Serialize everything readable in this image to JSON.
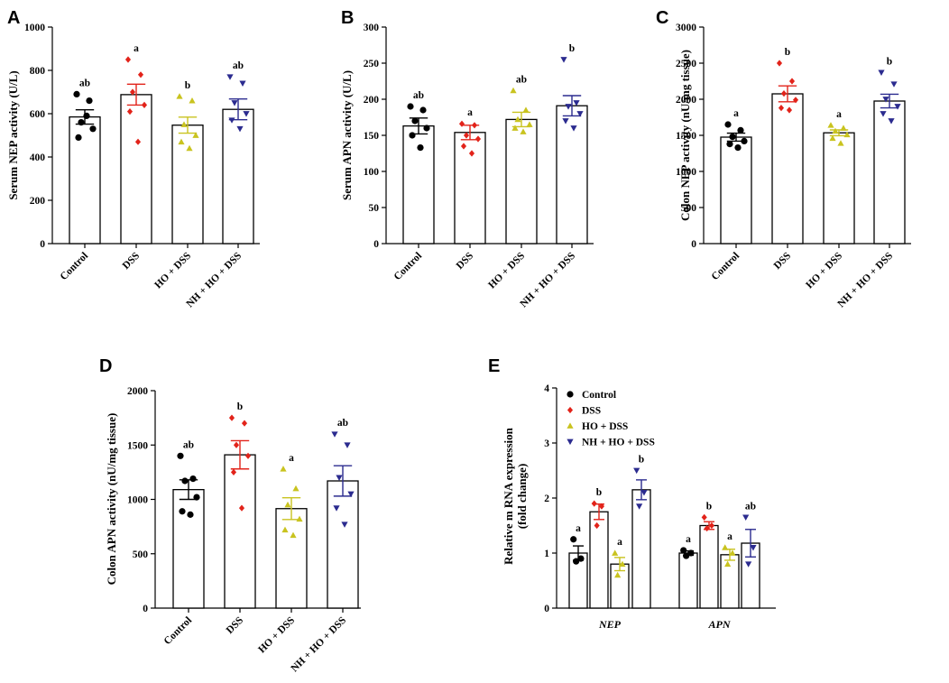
{
  "colors": {
    "Control": "#000000",
    "DSS": "#e2231a",
    "HO + DSS": "#c9c31f",
    "NH + HO + DSS": "#2b2b8f"
  },
  "markers": {
    "Control": "circle",
    "DSS": "diamond",
    "HO + DSS": "triangle-up",
    "NH + HO + DSS": "triangle-down"
  },
  "chart_data": [
    {
      "panel": "A",
      "type": "bar",
      "ylabel": "Serum NEP activity (U/L)",
      "ylim": [
        0,
        1000
      ],
      "yticks": [
        0,
        200,
        400,
        600,
        800,
        1000
      ],
      "categories": [
        "Control",
        "DSS",
        "HO + DSS",
        "NH + HO + DSS"
      ],
      "values": [
        585,
        688,
        547,
        620
      ],
      "sem": [
        33,
        48,
        37,
        48
      ],
      "significance": [
        "ab",
        "a",
        "b",
        "ab"
      ],
      "points": [
        [
          690,
          660,
          560,
          530,
          490,
          590
        ],
        [
          850,
          780,
          700,
          640,
          610,
          470
        ],
        [
          680,
          660,
          550,
          500,
          470,
          440
        ],
        [
          770,
          740,
          650,
          600,
          570,
          530
        ]
      ]
    },
    {
      "panel": "B",
      "type": "bar",
      "ylabel": "Serum APN activity (U/L)",
      "ylim": [
        0,
        300
      ],
      "yticks": [
        0,
        50,
        100,
        150,
        200,
        250,
        300
      ],
      "categories": [
        "Control",
        "DSS",
        "HO + DSS",
        "NH + HO + DSS"
      ],
      "values": [
        163,
        154,
        172,
        191
      ],
      "sem": [
        11,
        10,
        10,
        14
      ],
      "significance": [
        "ab",
        "a",
        "ab",
        "b"
      ],
      "points": [
        [
          190,
          185,
          170,
          160,
          150,
          133
        ],
        [
          166,
          164,
          150,
          145,
          135,
          125
        ],
        [
          212,
          185,
          172,
          165,
          160,
          155
        ],
        [
          255,
          195,
          190,
          180,
          170,
          160
        ]
      ]
    },
    {
      "panel": "C",
      "type": "bar",
      "ylabel": "Colon NEP activity (nU/mg tissue)",
      "ylim": [
        0,
        3000
      ],
      "yticks": [
        0,
        500,
        1000,
        1500,
        2000,
        2500,
        3000
      ],
      "categories": [
        "Control",
        "DSS",
        "HO + DSS",
        "NH + HO + DSS"
      ],
      "values": [
        1475,
        2075,
        1535,
        1975
      ],
      "sem": [
        55,
        110,
        40,
        95
      ],
      "significance": [
        "a",
        "b",
        "a",
        "b"
      ],
      "points": [
        [
          1650,
          1570,
          1480,
          1420,
          1380,
          1330
        ],
        [
          2500,
          2250,
          2080,
          1990,
          1880,
          1850
        ],
        [
          1640,
          1600,
          1560,
          1510,
          1460,
          1390
        ],
        [
          2370,
          2210,
          2000,
          1900,
          1800,
          1700
        ]
      ]
    },
    {
      "panel": "D",
      "type": "bar",
      "ylabel": "Colon APN activity (nU/mg tissue)",
      "ylim": [
        0,
        2000
      ],
      "yticks": [
        0,
        500,
        1000,
        1500,
        2000
      ],
      "categories": [
        "Control",
        "DSS",
        "HO + DSS",
        "NH + HO + DSS"
      ],
      "values": [
        1090,
        1410,
        915,
        1170
      ],
      "sem": [
        90,
        130,
        100,
        140
      ],
      "significance": [
        "ab",
        "b",
        "a",
        "ab"
      ],
      "points": [
        [
          1400,
          1190,
          1170,
          1020,
          890,
          860
        ],
        [
          1750,
          1700,
          1500,
          1400,
          1250,
          920
        ],
        [
          1280,
          1100,
          950,
          820,
          720,
          670
        ],
        [
          1600,
          1500,
          1200,
          1050,
          920,
          770
        ]
      ]
    },
    {
      "panel": "E",
      "type": "bar",
      "ylabel": "Relative m RNA expression",
      "ylabel2": "(fold change)",
      "ylim": [
        0,
        4
      ],
      "yticks": [
        0,
        1,
        2,
        3,
        4
      ],
      "groups": [
        "NEP",
        "APN"
      ],
      "series": [
        {
          "name": "Control",
          "values": [
            1.0,
            1.0
          ],
          "sem": [
            0.13,
            0.04
          ],
          "significance": [
            "a",
            "a"
          ],
          "points": [
            [
              1.25,
              0.9,
              0.85
            ],
            [
              1.05,
              1.0,
              0.95
            ]
          ]
        },
        {
          "name": "DSS",
          "values": [
            1.75,
            1.5
          ],
          "sem": [
            0.14,
            0.07
          ],
          "significance": [
            "b",
            "b"
          ],
          "points": [
            [
              1.9,
              1.85,
              1.5
            ],
            [
              1.65,
              1.5,
              1.45
            ]
          ]
        },
        {
          "name": "HO + DSS",
          "values": [
            0.8,
            0.97
          ],
          "sem": [
            0.12,
            0.1
          ],
          "significance": [
            "a",
            "a"
          ],
          "points": [
            [
              1.0,
              0.8,
              0.6
            ],
            [
              1.1,
              1.0,
              0.8
            ]
          ]
        },
        {
          "name": "NH + HO + DSS",
          "values": [
            2.15,
            1.18
          ],
          "sem": [
            0.18,
            0.25
          ],
          "significance": [
            "b",
            "ab"
          ],
          "points": [
            [
              2.5,
              2.1,
              1.85
            ],
            [
              1.65,
              1.1,
              0.8
            ]
          ]
        }
      ],
      "legend": [
        "Control",
        "DSS",
        "HO + DSS",
        "NH + HO + DSS"
      ],
      "legend_position": "top-left"
    }
  ]
}
